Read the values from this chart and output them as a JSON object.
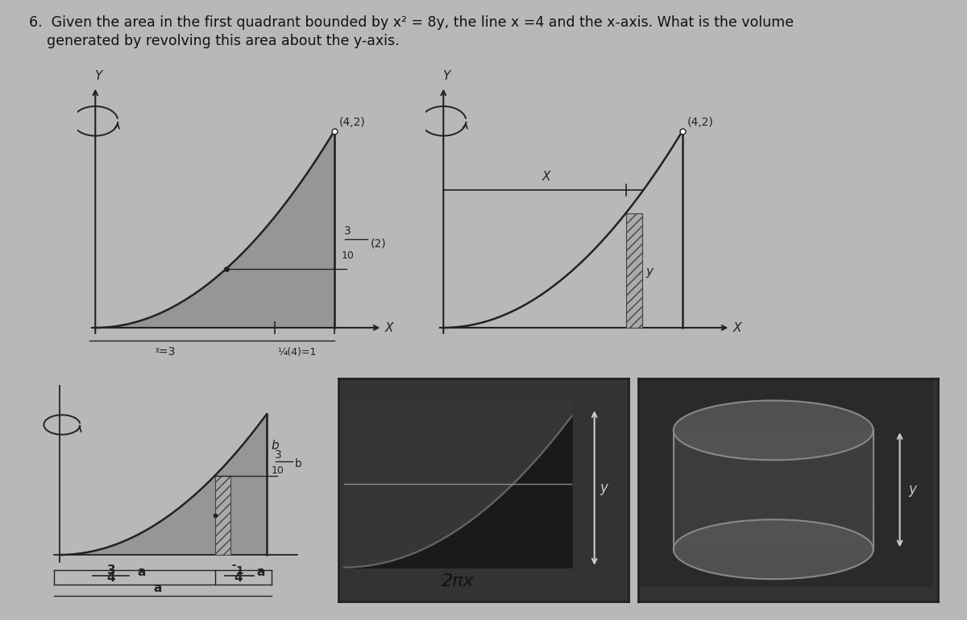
{
  "bg_color": "#b8b8b8",
  "title_line1": "6.  Given the area in the first quadrant bounded by x² = 8y, the line x =4 and the x-axis. What is the volume",
  "title_line2": "    generated by revolving this area about the y-axis.",
  "title_fontsize": 12.5,
  "fill_color": "#888888",
  "line_color": "#222222",
  "plot1": {
    "point_label": "(4,2)",
    "xlabel": "X",
    "ylabel": "Y",
    "xbar_label": "ᵡ=3",
    "formula_label1": "¼(4)=1",
    "frac_3": "3",
    "frac_10": "10",
    "frac_num2": "(2)"
  },
  "plot2": {
    "point_label": "(4,2)",
    "xlabel": "X",
    "ylabel": "Y",
    "x_label": "X",
    "y_label": "y"
  },
  "plot3": {
    "label_b": "b",
    "label_a": "a",
    "label_34_top": "3",
    "label_34_bot": "4",
    "label_34_a": "a",
    "label_14_top": "1",
    "label_14_bot": "4",
    "label_14_a": "a",
    "label_310_top": "3",
    "label_310_bot": "10",
    "label_310_b": "b"
  },
  "bottom_label": "2πx",
  "dark_box_color": "#333333",
  "photo_dark": "#2a2a2a",
  "photo_mid": "#555555"
}
